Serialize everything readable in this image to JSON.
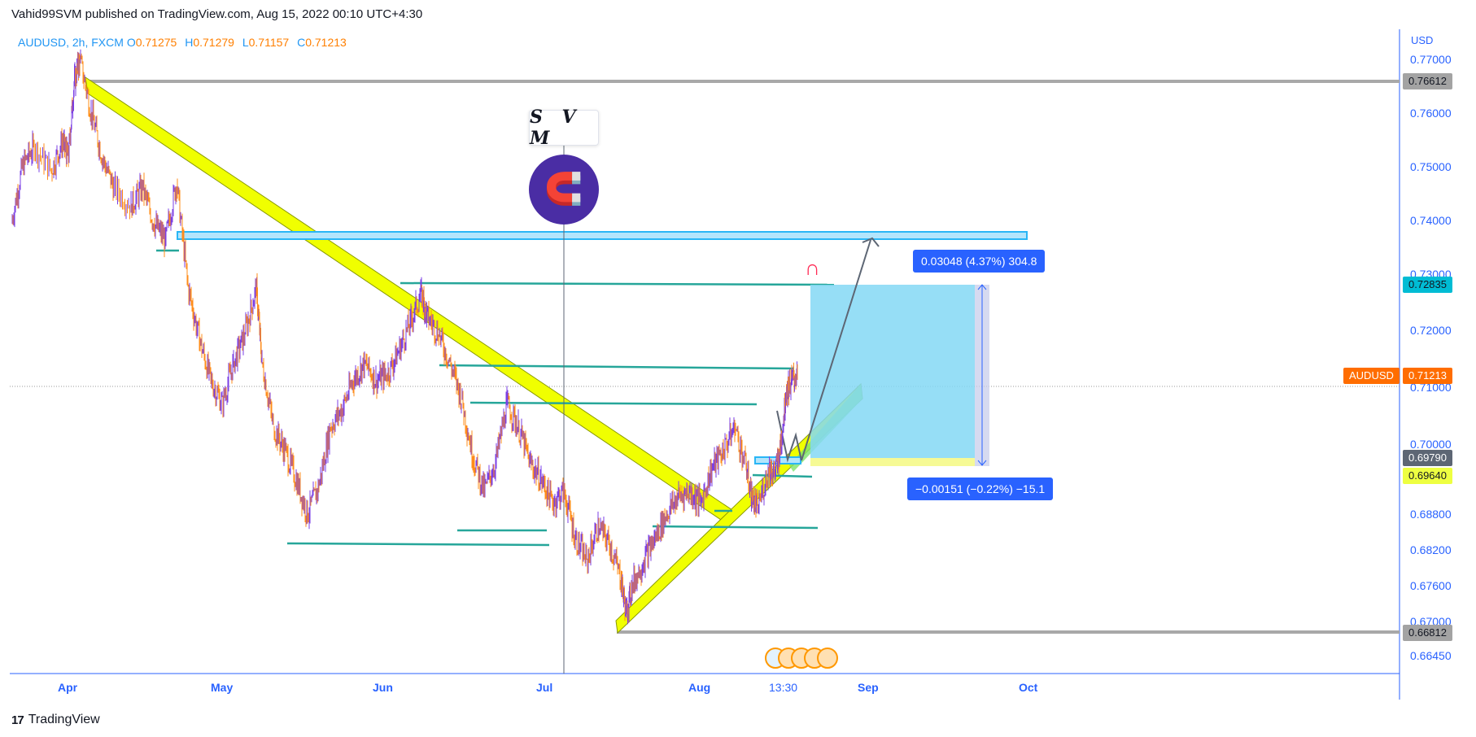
{
  "publisher": "Vahid99SVM published on TradingView.com, Aug 15, 2022 00:10 UTC+4:30",
  "legend": {
    "symbol": "AUDUSD, 2h, FXCM",
    "o_label": "O",
    "o": "0.71275",
    "h_label": "H",
    "h": "0.71279",
    "l_label": "L",
    "l": "0.71157",
    "c_label": "C",
    "c": "0.71213"
  },
  "brand": "TradingView",
  "svm_text": "S V M",
  "currency": "USD",
  "colors": {
    "up": "#7b3fe4",
    "down": "#ff8c1a",
    "channel": "#f0ff00",
    "channel_border": "#8a9a00",
    "support": "#26a69a",
    "zone": "#4fc3f7",
    "target": "#29b6f6",
    "accent": "#2962ff",
    "symbol_tag": "#ff6d00"
  },
  "chart_data": {
    "type": "line",
    "title": "AUDUSD, 2h, FXCM",
    "xlabel": "",
    "ylabel": "",
    "x_ticks": [
      "Apr",
      "May",
      "Jun",
      "Jul",
      "Aug",
      "13:30",
      "Sep",
      "Oct"
    ],
    "y_ticks": [
      "0.77000",
      "0.76000",
      "0.75000",
      "0.74000",
      "0.73000",
      "0.72000",
      "0.71000",
      "0.70000",
      "0.68800",
      "0.68200",
      "0.67600",
      "0.67000",
      "0.66450"
    ],
    "price_tags": {
      "high": "0.76612",
      "target": "0.72835",
      "last": "0.71213",
      "entry": "0.69790",
      "stop": "0.69640",
      "low": "0.66812"
    },
    "symbol_tag": "AUDUSD",
    "measure_up": "0.03048 (4.37%) 304.8",
    "measure_down": "−0.00151 (−0.22%) −15.1",
    "series": [
      {
        "values": [
          [
            "2022-03-28",
            0.738
          ],
          [
            "2022-03-30",
            0.748
          ],
          [
            "2022-04-01",
            0.751
          ],
          [
            "2022-04-04",
            0.747
          ],
          [
            "2022-04-06",
            0.752
          ],
          [
            "2022-04-07",
            0.749
          ],
          [
            "2022-04-08",
            0.762
          ],
          [
            "2022-04-09",
            0.766
          ],
          [
            "2022-04-11",
            0.757
          ],
          [
            "2022-04-13",
            0.749
          ],
          [
            "2022-04-15",
            0.744
          ],
          [
            "2022-04-18",
            0.741
          ],
          [
            "2022-04-20",
            0.744
          ],
          [
            "2022-04-22",
            0.738
          ],
          [
            "2022-04-24",
            0.735
          ],
          [
            "2022-04-26",
            0.745
          ],
          [
            "2022-04-28",
            0.727
          ],
          [
            "2022-04-30",
            0.718
          ],
          [
            "2022-05-02",
            0.711
          ],
          [
            "2022-05-04",
            0.707
          ],
          [
            "2022-05-06",
            0.714
          ],
          [
            "2022-05-08",
            0.719
          ],
          [
            "2022-05-10",
            0.727
          ],
          [
            "2022-05-11",
            0.714
          ],
          [
            "2022-05-13",
            0.703
          ],
          [
            "2022-05-15",
            0.699
          ],
          [
            "2022-05-17",
            0.694
          ],
          [
            "2022-05-19",
            0.688
          ],
          [
            "2022-05-21",
            0.693
          ],
          [
            "2022-05-23",
            0.703
          ],
          [
            "2022-05-25",
            0.706
          ],
          [
            "2022-05-27",
            0.711
          ],
          [
            "2022-05-29",
            0.714
          ],
          [
            "2022-05-31",
            0.711
          ],
          [
            "2022-06-02",
            0.712
          ],
          [
            "2022-06-04",
            0.716
          ],
          [
            "2022-06-06",
            0.721
          ],
          [
            "2022-06-08",
            0.726
          ],
          [
            "2022-06-09",
            0.722
          ],
          [
            "2022-06-11",
            0.719
          ],
          [
            "2022-06-13",
            0.714
          ],
          [
            "2022-06-15",
            0.708
          ],
          [
            "2022-06-17",
            0.698
          ],
          [
            "2022-06-19",
            0.692
          ],
          [
            "2022-06-21",
            0.697
          ],
          [
            "2022-06-23",
            0.707
          ],
          [
            "2022-06-25",
            0.703
          ],
          [
            "2022-06-27",
            0.697
          ],
          [
            "2022-06-29",
            0.694
          ],
          [
            "2022-07-01",
            0.69
          ],
          [
            "2022-07-03",
            0.692
          ],
          [
            "2022-07-05",
            0.684
          ],
          [
            "2022-07-07",
            0.68
          ],
          [
            "2022-07-09",
            0.686
          ],
          [
            "2022-07-11",
            0.683
          ],
          [
            "2022-07-13",
            0.677
          ],
          [
            "2022-07-14",
            0.671
          ],
          [
            "2022-07-15",
            0.676
          ],
          [
            "2022-07-17",
            0.68
          ],
          [
            "2022-07-19",
            0.684
          ],
          [
            "2022-07-21",
            0.688
          ],
          [
            "2022-07-23",
            0.691
          ],
          [
            "2022-07-25",
            0.692
          ],
          [
            "2022-07-27",
            0.69
          ],
          [
            "2022-07-29",
            0.696
          ],
          [
            "2022-07-31",
            0.699
          ],
          [
            "2022-08-02",
            0.703
          ],
          [
            "2022-08-04",
            0.696
          ],
          [
            "2022-08-05",
            0.691
          ],
          [
            "2022-08-06",
            0.689
          ],
          [
            "2022-08-08",
            0.696
          ],
          [
            "2022-08-09",
            0.695
          ],
          [
            "2022-08-10",
            0.699
          ],
          [
            "2022-08-11",
            0.709
          ],
          [
            "2022-08-12",
            0.711
          ],
          [
            "2022-08-13",
            0.7121
          ]
        ]
      }
    ],
    "ylim": [
      0.661,
      0.7712
    ]
  }
}
